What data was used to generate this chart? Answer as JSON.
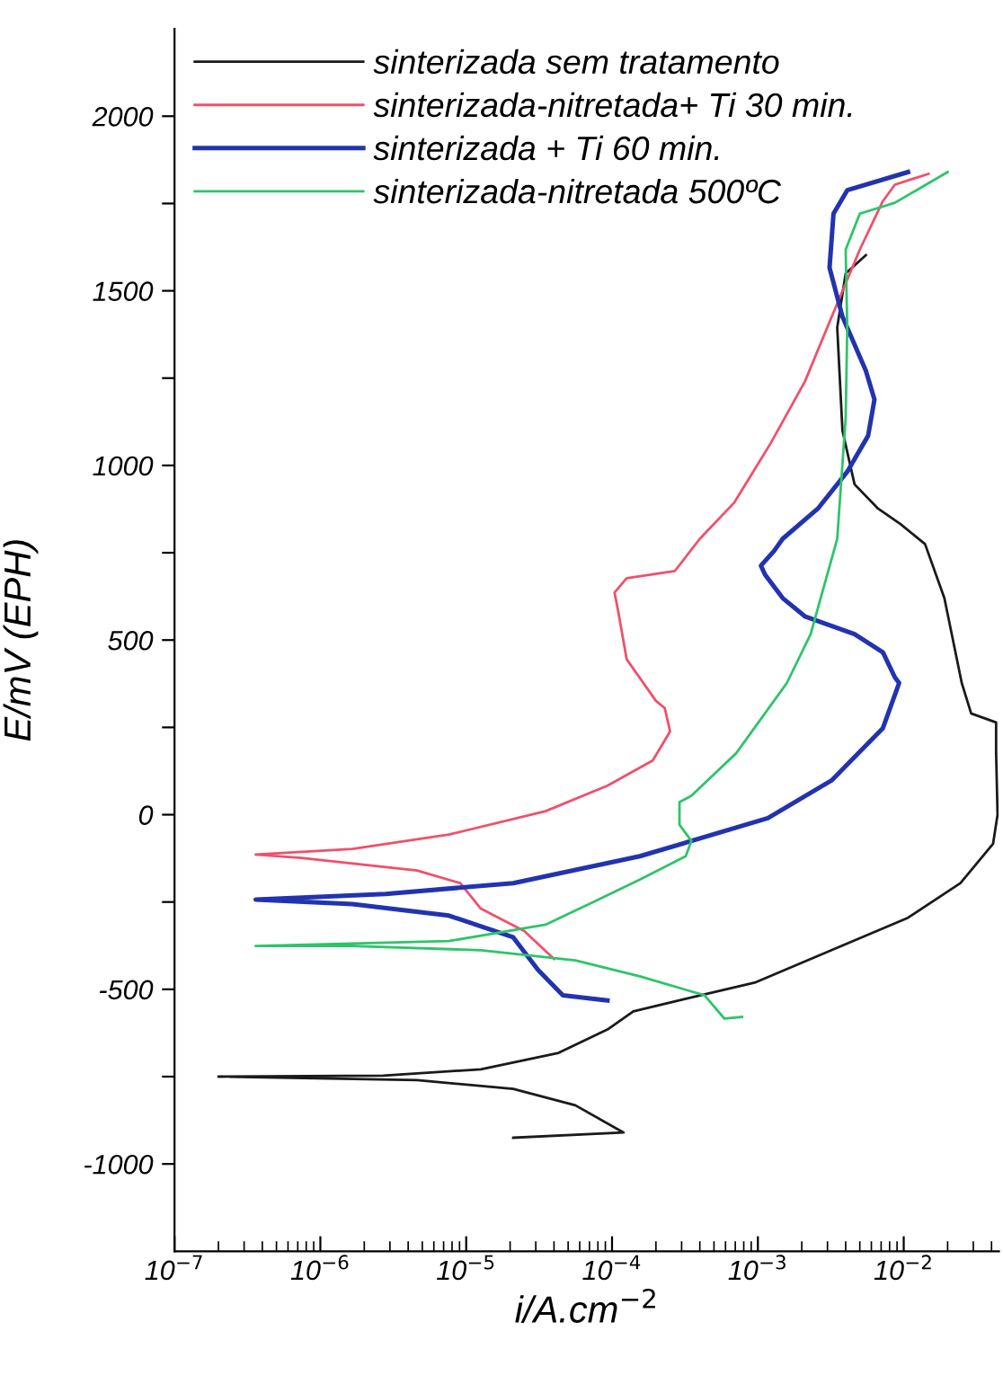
{
  "chart_data": {
    "type": "line",
    "xlabel": "i/A.cm$^{−2}$",
    "ylabel": "E/mV (EPH)",
    "log": "x",
    "xlim": [
      1e-07,
      0.045
    ],
    "xticks": [
      {
        "value": 1e-07,
        "label": "10$^{−7}$"
      },
      {
        "value": 1e-06,
        "label": "10$^{−6}$"
      },
      {
        "value": 1e-05,
        "label": "10$^{−5}$"
      },
      {
        "value": 0.0001,
        "label": "10$^{−4}$"
      },
      {
        "value": 0.001,
        "label": "10$^{−3}$"
      },
      {
        "value": 0.01,
        "label": "10$^{−2}$"
      }
    ],
    "ylim": [
      -1250,
      2250
    ],
    "yticks": [
      {
        "value": -1000,
        "label": "-1000"
      },
      {
        "value": -750,
        "label": null
      },
      {
        "value": -500,
        "label": "-500"
      },
      {
        "value": -250,
        "label": null
      },
      0,
      {
        "value": 250,
        "label": null
      },
      500,
      {
        "value": 750,
        "label": null
      },
      1000,
      {
        "value": 1250,
        "label": null
      },
      1500,
      {
        "value": 1750,
        "label": null
      },
      2000
    ],
    "legend": "top left",
    "grid": false,
    "marker": "none",
    "line_style": "solid",
    "series": [
      {
        "name": "sinterizada sem tratamento",
        "color": "#1a1a1a",
        "x": [
          2.1e-05,
          0.00012,
          5.6e-05,
          2.1e-05,
          4.6e-06,
          2e-07,
          2.7e-06,
          1.26e-05,
          4.3e-05,
          9.3e-05,
          0.00014,
          0.00032,
          0.00095,
          0.0032,
          0.0107,
          0.0245,
          0.041,
          0.044,
          0.043,
          0.043,
          0.029,
          0.025,
          0.019,
          0.014,
          0.0095,
          0.0066,
          0.0046,
          0.0038,
          0.0035,
          0.004,
          0.0055
        ],
        "values": [
          -925,
          -910,
          -832,
          -785,
          -760,
          -750,
          -747,
          -729,
          -682,
          -615,
          -563,
          -527,
          -481,
          -388,
          -295,
          -196,
          -83,
          0,
          176,
          264,
          290,
          377,
          620,
          775,
          832,
          878,
          946,
          1100,
          1395,
          1550,
          1602
        ]
      },
      {
        "name": "sinterizada-nitretada+ Ti 30 min.",
        "color": "#f0506a",
        "x": [
          4e-05,
          2.5e-05,
          1.26e-05,
          9.1e-06,
          4.6e-06,
          7.4e-07,
          3.6e-07,
          1.66e-06,
          7.6e-06,
          3.5e-05,
          9.3e-05,
          0.00019,
          0.00025,
          0.00023,
          0.0002,
          0.000126,
          0.00011,
          0.000104,
          0.000126,
          0.00027,
          0.0004,
          0.00069,
          0.00123,
          0.0021,
          0.0031,
          0.005,
          0.0072,
          0.0087,
          0.0148
        ],
        "values": [
          -413,
          -333,
          -269,
          -196,
          -160,
          -124,
          -114,
          -98,
          -57,
          10,
          83,
          155,
          238,
          305,
          326,
          445,
          584,
          636,
          677,
          698,
          790,
          894,
          1065,
          1240,
          1411,
          1618,
          1757,
          1804,
          1835
        ]
      },
      {
        "name": "sinterizada + Ti 60 min.",
        "color": "#2233b0",
        "x": [
          9.3e-05,
          4.6e-05,
          3.1e-05,
          2.1e-05,
          7.6e-06,
          1.66e-06,
          3.6e-07,
          2.8e-06,
          2.1e-05,
          0.000155,
          0.00117,
          0.0032,
          0.0072,
          0.0093,
          0.0087,
          0.0072,
          0.0046,
          0.0021,
          0.00148,
          0.00112,
          0.00105,
          0.00129,
          0.00148,
          0.0026,
          0.0041,
          0.0057,
          0.0063,
          0.0055,
          0.0038,
          0.0031,
          0.0033,
          0.0041,
          0.0107
        ],
        "values": [
          -532,
          -517,
          -444,
          -351,
          -289,
          -256,
          -243,
          -227,
          -196,
          -119,
          -10,
          98,
          248,
          377,
          393,
          465,
          517,
          568,
          620,
          687,
          713,
          755,
          790,
          878,
          982,
          1085,
          1189,
          1271,
          1426,
          1566,
          1721,
          1788,
          1840
        ]
      },
      {
        "name": "sinterizada-nitretada 500ºC",
        "color": "#2ec46a",
        "x": [
          0.00078,
          0.00059,
          0.00043,
          0.000155,
          5.6e-05,
          1.26e-05,
          1.66e-06,
          3.6e-07,
          7.6e-06,
          3.5e-05,
          7.6e-05,
          0.000155,
          0.00032,
          0.00035,
          0.00029,
          0.00029,
          0.00035,
          0.00071,
          0.00158,
          0.0023,
          0.0035,
          0.004,
          0.0041,
          0.004,
          0.005,
          0.0087,
          0.02
        ],
        "values": [
          -579,
          -584,
          -517,
          -463,
          -417,
          -388,
          -376,
          -376,
          -362,
          -315,
          -248,
          -186,
          -119,
          -75,
          -29,
          36,
          54,
          176,
          377,
          517,
          790,
          1137,
          1395,
          1618,
          1721,
          1752,
          1840
        ]
      }
    ]
  }
}
